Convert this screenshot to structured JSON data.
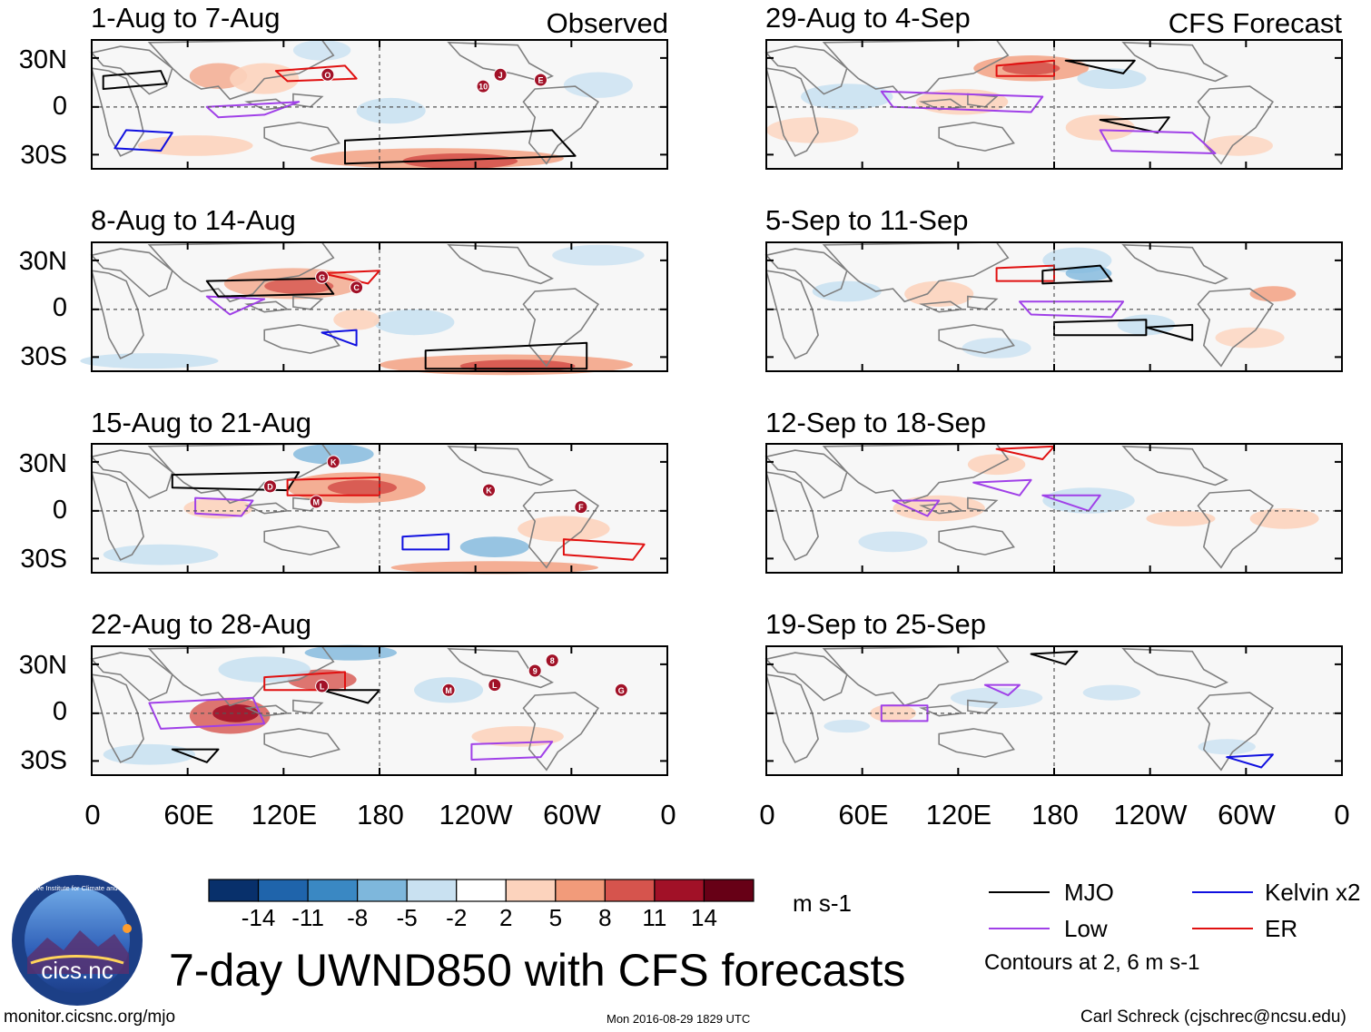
{
  "left_column_label": "Observed",
  "right_column_label": "CFS Forecast",
  "panels": {
    "observed": [
      {
        "period": "1-Aug to 7-Aug",
        "storms": [
          "O",
          "J",
          "10",
          "E"
        ]
      },
      {
        "period": "8-Aug to 14-Aug",
        "storms": [
          "G",
          "C"
        ]
      },
      {
        "period": "15-Aug to 21-Aug",
        "storms": [
          "K",
          "D",
          "M",
          "K",
          "F"
        ]
      },
      {
        "period": "22-Aug to 28-Aug",
        "storms": [
          "L",
          "M",
          "L",
          "9",
          "8",
          "G"
        ]
      }
    ],
    "forecast": [
      {
        "period": "29-Aug to 4-Sep"
      },
      {
        "period": "5-Sep to 11-Sep"
      },
      {
        "period": "12-Sep to 18-Sep"
      },
      {
        "period": "19-Sep to 25-Sep"
      }
    ]
  },
  "y_axis": {
    "labels": [
      "30N",
      "0",
      "30S"
    ]
  },
  "x_axis": {
    "labels": [
      "0",
      "60E",
      "120E",
      "180",
      "120W",
      "60W",
      "0"
    ]
  },
  "colorbar": {
    "ticks": [
      "-14",
      "-11",
      "-8",
      "-5",
      "-2",
      "2",
      "5",
      "8",
      "11",
      "14"
    ],
    "colors": [
      "#08306b",
      "#1f64ab",
      "#3a88c3",
      "#7eb7dc",
      "#c9e1f1",
      "#ffffff",
      "#fcd3bd",
      "#f29b7a",
      "#d6544d",
      "#a11127",
      "#670016"
    ],
    "units": "m s-1"
  },
  "legend": {
    "items": [
      {
        "label": "MJO",
        "color": "#000000"
      },
      {
        "label": "Kelvin x2",
        "color": "#1010e0"
      },
      {
        "label": "Low",
        "color": "#a040e8"
      },
      {
        "label": "ER",
        "color": "#e01010"
      }
    ],
    "note": "Contours at 2, 6 m s-1"
  },
  "logo_text": "cics.nc",
  "logo_ring_text": "Cooperative Institute for Climate and Satellites",
  "main_title": "7-day UWND850 with CFS forecasts",
  "footer": {
    "left": "monitor.cicsnc.org/mjo",
    "center": "Mon 2016-08-29 1829 UTC",
    "right": "Carl Schreck (cjschrec@ncsu.edu)"
  }
}
